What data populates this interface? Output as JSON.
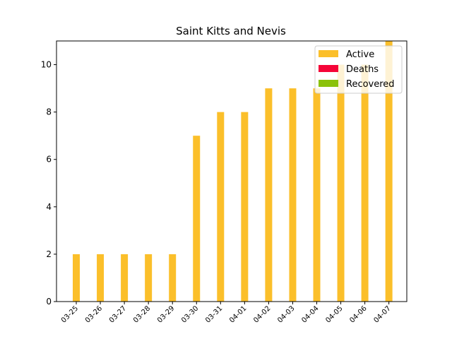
{
  "chart_data": {
    "type": "bar",
    "title": "Saint Kitts and Nevis",
    "xlabel": "",
    "ylabel": "",
    "categories": [
      "03-25",
      "03-26",
      "03-27",
      "03-28",
      "03-29",
      "03-30",
      "03-31",
      "04-01",
      "04-02",
      "04-03",
      "04-04",
      "04-05",
      "04-06",
      "04-07"
    ],
    "series": [
      {
        "name": "Active",
        "color": "#fbbf2a",
        "values": [
          2,
          2,
          2,
          2,
          2,
          7,
          8,
          8,
          9,
          9,
          9,
          10,
          10,
          11
        ]
      },
      {
        "name": "Deaths",
        "color": "#f50538",
        "values": [
          0,
          0,
          0,
          0,
          0,
          0,
          0,
          0,
          0,
          0,
          0,
          0,
          0,
          0
        ]
      },
      {
        "name": "Recovered",
        "color": "#8bc20a",
        "values": [
          0,
          0,
          0,
          0,
          0,
          0,
          0,
          0,
          0,
          0,
          0,
          0,
          0,
          0
        ]
      }
    ],
    "ylim": [
      0,
      11
    ],
    "yticks": [
      0,
      2,
      4,
      6,
      8,
      10
    ],
    "legend": "top-right",
    "grid": false
  }
}
